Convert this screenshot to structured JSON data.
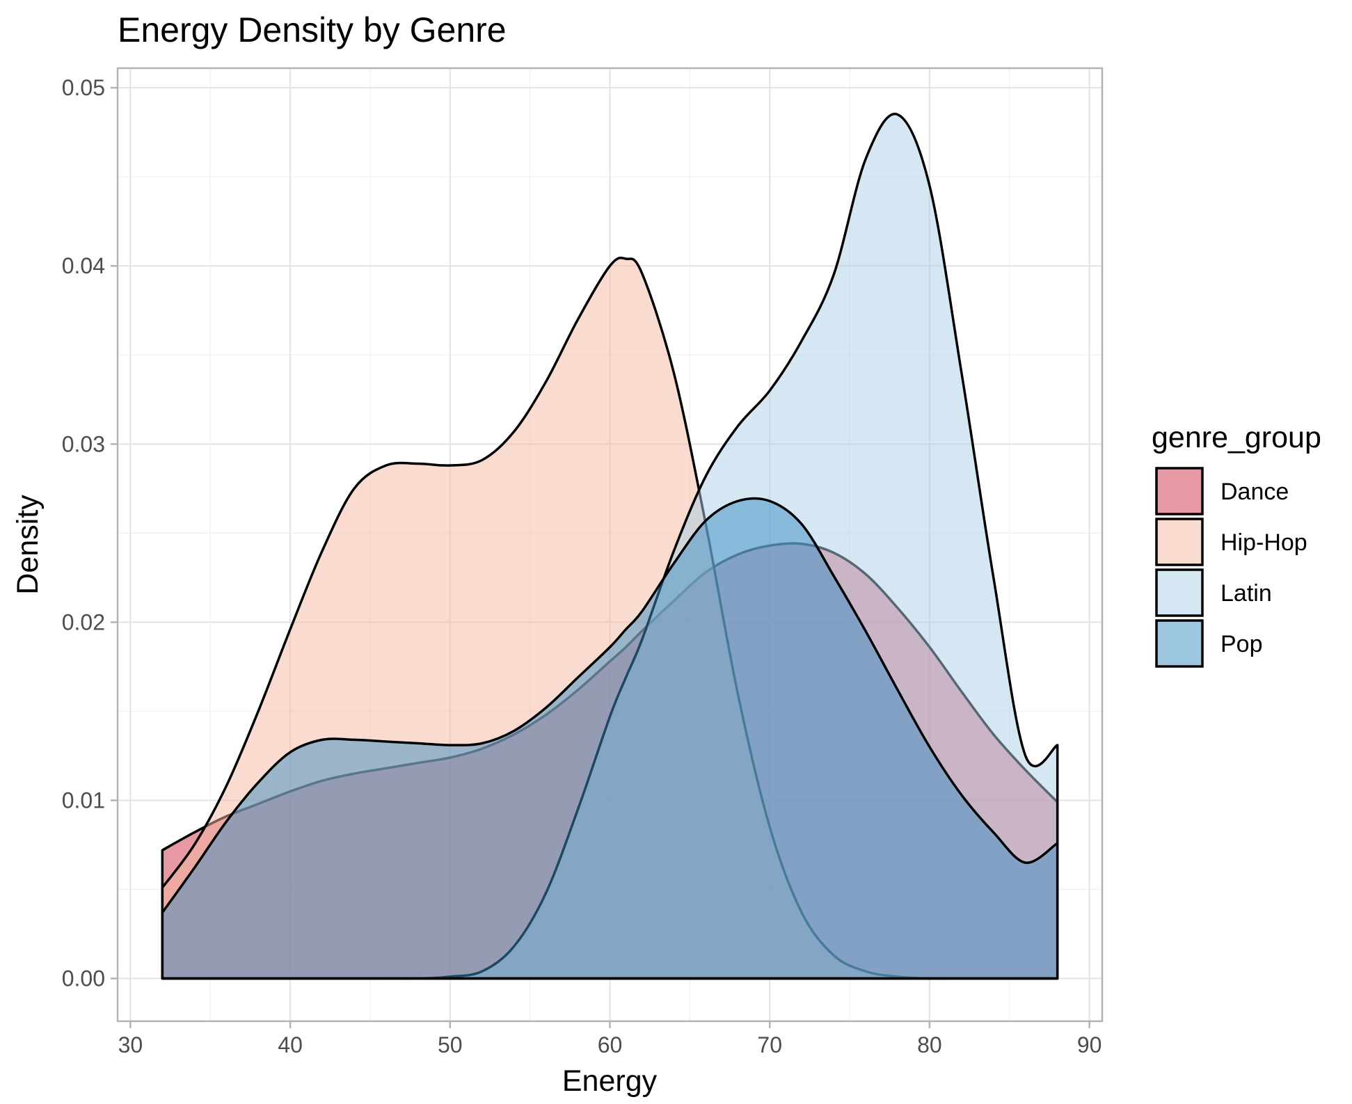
{
  "chart_data": {
    "type": "area",
    "subtype": "density",
    "title": "Energy Density by Genre",
    "xlabel": "Energy",
    "ylabel": "Density",
    "xlim": [
      29.2,
      90.8
    ],
    "ylim": [
      -0.0024,
      0.0511
    ],
    "x_ticks": [
      30,
      40,
      50,
      60,
      70,
      80,
      90
    ],
    "x_tick_labels": [
      "30",
      "40",
      "50",
      "60",
      "70",
      "80",
      "90"
    ],
    "y_ticks": [
      0.0,
      0.01,
      0.02,
      0.03,
      0.04,
      0.05
    ],
    "y_tick_labels": [
      "0.00",
      "0.01",
      "0.02",
      "0.03",
      "0.04",
      "0.05"
    ],
    "grid": true,
    "legend": {
      "title": "genre_group",
      "position": "right"
    },
    "x": [
      32,
      34,
      36,
      38,
      40,
      42,
      44,
      46,
      48,
      50,
      52,
      54,
      56,
      58,
      60,
      61,
      62,
      64,
      66,
      68,
      70,
      72,
      74,
      76,
      78,
      80,
      82,
      84,
      86,
      88
    ],
    "series": [
      {
        "name": "Dance",
        "color": "#d6475a",
        "fill_opacity": 0.55,
        "values": [
          0.0072,
          0.0082,
          0.0091,
          0.0098,
          0.0105,
          0.0111,
          0.0115,
          0.0118,
          0.0121,
          0.0124,
          0.0129,
          0.0137,
          0.0148,
          0.0162,
          0.0178,
          0.0186,
          0.0195,
          0.0212,
          0.0228,
          0.0238,
          0.0243,
          0.0244,
          0.0239,
          0.0227,
          0.0208,
          0.0186,
          0.0161,
          0.0137,
          0.0117,
          0.0099
        ]
      },
      {
        "name": "Hip-Hop",
        "color": "#f4b89f",
        "fill_opacity": 0.5,
        "values": [
          0.0051,
          0.0075,
          0.0108,
          0.015,
          0.0196,
          0.024,
          0.0275,
          0.0288,
          0.0289,
          0.0288,
          0.0291,
          0.0307,
          0.0335,
          0.037,
          0.04,
          0.0404,
          0.0396,
          0.034,
          0.0255,
          0.016,
          0.0085,
          0.0037,
          0.0013,
          0.0004,
          0.0001,
          0.0,
          0.0,
          0.0,
          0.0,
          0.0
        ]
      },
      {
        "name": "Latin",
        "color": "#aacfe6",
        "fill_opacity": 0.5,
        "values": [
          0.0,
          0.0,
          0.0,
          0.0,
          0.0,
          0.0,
          0.0,
          0.0,
          0.0,
          0.0001,
          0.0004,
          0.0018,
          0.0048,
          0.0095,
          0.0147,
          0.0169,
          0.019,
          0.024,
          0.0282,
          0.031,
          0.033,
          0.0358,
          0.0395,
          0.046,
          0.0485,
          0.0445,
          0.034,
          0.0225,
          0.0125,
          0.0131
        ]
      },
      {
        "name": "Pop",
        "color": "#3b8ec3",
        "fill_opacity": 0.5,
        "values": [
          0.0037,
          0.0062,
          0.0088,
          0.011,
          0.0127,
          0.0134,
          0.0134,
          0.0133,
          0.0132,
          0.0131,
          0.0132,
          0.0139,
          0.0152,
          0.0169,
          0.0186,
          0.0196,
          0.0206,
          0.0233,
          0.0257,
          0.0268,
          0.0268,
          0.0255,
          0.0226,
          0.0195,
          0.0162,
          0.013,
          0.0103,
          0.0082,
          0.0065,
          0.0076
        ]
      }
    ]
  }
}
